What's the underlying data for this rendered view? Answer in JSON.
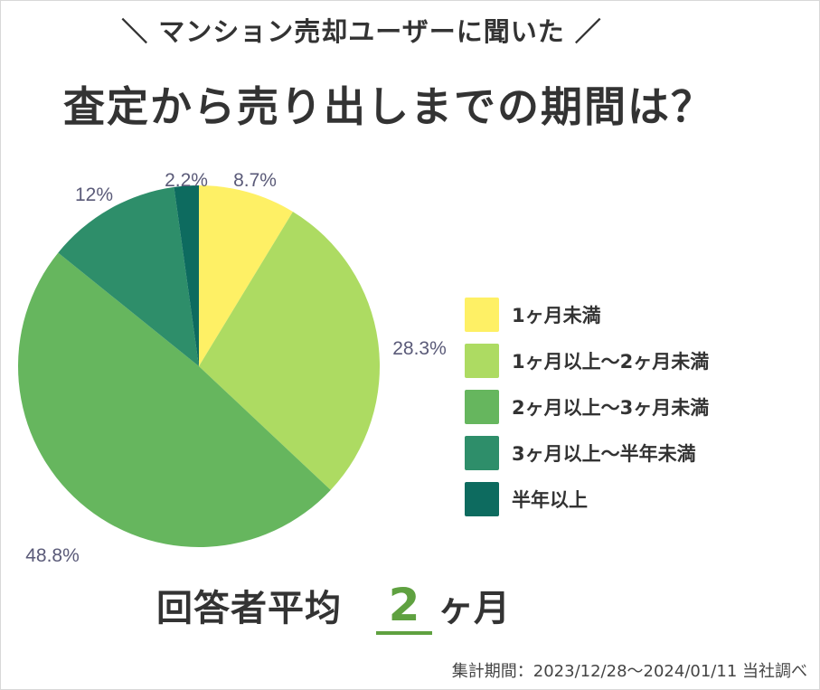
{
  "header": {
    "subtitle": "＼ マンション売却ユーザーに聞いた ／",
    "title": "査定から売り出しまでの期間は？"
  },
  "chart_data": {
    "type": "pie",
    "categories": [
      "1ヶ月未満",
      "1ヶ月以上〜2ヶ月未満",
      "2ヶ月以上〜3ヶ月未満",
      "3ヶ月以上〜半年未満",
      "半年以上"
    ],
    "values": [
      8.7,
      28.3,
      48.8,
      12,
      2.2
    ],
    "labels": [
      "8.7%",
      "28.3%",
      "48.8%",
      "12%",
      "2.2%"
    ],
    "colors": [
      "#fef065",
      "#addb62",
      "#66b65e",
      "#2e8e6a",
      "#0d6b5f"
    ],
    "legend_position": "right"
  },
  "summary": {
    "label": "回答者平均",
    "value": "2",
    "unit": "ヶ月"
  },
  "footnote": "集計期間：2023/12/28〜2024/01/11 当社調べ"
}
